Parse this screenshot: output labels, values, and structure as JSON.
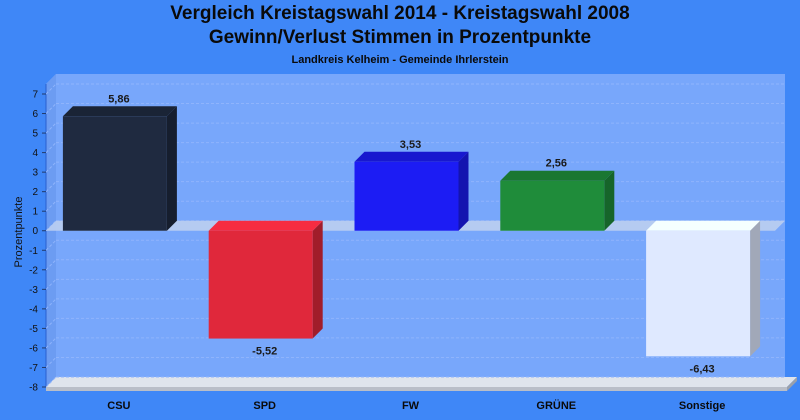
{
  "title": "Vergleich Kreistagswahl 2014 - Kreistagswahl 2008",
  "subtitle": "Gewinn/Verlust Stimmen in Prozentpunkte",
  "caption": "Landkreis Kelheim - Gemeinde Ihrlerstein",
  "chart_data": {
    "type": "bar",
    "title": "Vergleich Kreistagswahl 2014 - Kreistagswahl 2008",
    "subtitle": "Gewinn/Verlust Stimmen in Prozentpunkte",
    "xlabel": "",
    "ylabel": "Prozentpunkte",
    "ylim": [
      -8,
      7
    ],
    "yticks": [
      7,
      6,
      5,
      4,
      3,
      2,
      1,
      0,
      -1,
      -2,
      -3,
      -4,
      -5,
      -6,
      -7,
      -8
    ],
    "categories": [
      "CSU",
      "SPD",
      "FW",
      "GRÜNE",
      "Sonstige"
    ],
    "values": [
      5.86,
      -5.52,
      3.53,
      2.56,
      -6.43
    ],
    "value_labels": [
      "5,86",
      "-5,52",
      "3,53",
      "2,56",
      "-6,43"
    ],
    "colors": [
      "#1f2a40",
      "#e0283b",
      "#1c1cf4",
      "#1f8c3a",
      "#dfe9ff"
    ],
    "grid": true,
    "legend": "none"
  }
}
